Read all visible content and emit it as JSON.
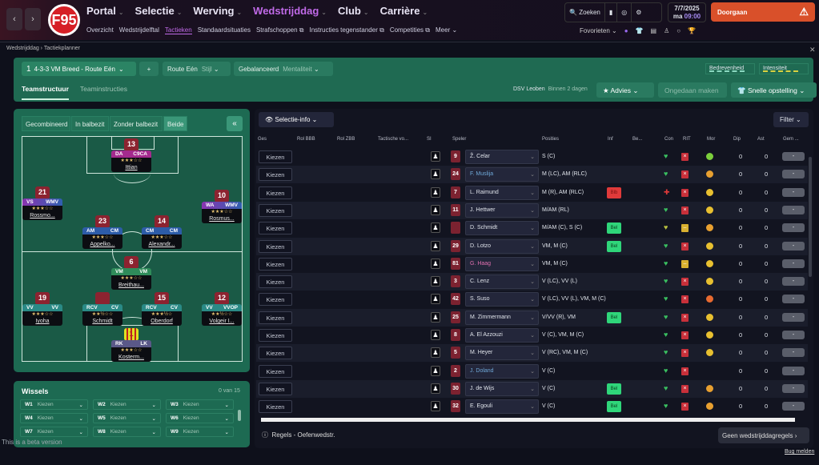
{
  "nav": {
    "back": "‹",
    "forward": "›",
    "club_logo_text": "F95",
    "main": [
      {
        "label": "Portal"
      },
      {
        "label": "Selectie"
      },
      {
        "label": "Werving"
      },
      {
        "label": "Wedstrijddag",
        "active": true
      },
      {
        "label": "Club"
      },
      {
        "label": "Carrière"
      }
    ],
    "sub": [
      {
        "label": "Overzicht"
      },
      {
        "label": "Wedstrijdelftal"
      },
      {
        "label": "Tactieken",
        "active": true
      },
      {
        "label": "Standaardsituaties"
      },
      {
        "label": "Strafschoppen ⧉"
      },
      {
        "label": "Instructies tegenstander ⧉"
      },
      {
        "label": "Competities ⧉"
      },
      {
        "label": "Meer ⌄"
      }
    ],
    "search": "Zoeken",
    "date": "7/7/2025",
    "day": "ma",
    "time": "09:00",
    "continue": "Doorgaan",
    "favorites": "Fovorieten"
  },
  "breadcrumb": {
    "parent": "Wedstrijddag",
    "current": "Tactiekplanner"
  },
  "toolbar": {
    "tactic_no": "1",
    "tactic": "4-3-3 VM Breed - Route Eén",
    "add": "+",
    "style_value": "Route Eén",
    "style_label": "Stijl",
    "mentality_value": "Gebalanceerd",
    "mentality_label": "Mentaliteit",
    "meter1": "Bedrevenheid",
    "meter2": "Intensiteit",
    "tabs": [
      "Teamstructuur",
      "Teaminstructies"
    ],
    "opponent": "DSV Leoben",
    "opponent_when": "Binnen 2 dagen",
    "advice": "Advies",
    "undo": "Ongedaan maken",
    "quick": "Snelle opstelling"
  },
  "pitch": {
    "segments": [
      "Gecombineerd",
      "In balbezit",
      "Zonder balbezit",
      "Beide"
    ],
    "active_segment": "Beide",
    "players": [
      {
        "num": "13",
        "r1": "DA",
        "r2": "C9CA",
        "stars": "★★★☆☆",
        "name": "Ittian",
        "color": "#a42a8e"
      },
      {
        "num": "21",
        "r1": "VS",
        "r2": "WMV",
        "stars": "★★★☆☆",
        "name": "Rossmo...",
        "color": "linear-gradient(90deg,#8a34b0,#2f5fb0)"
      },
      {
        "num": "10",
        "r1": "WA",
        "r2": "WMV",
        "stars": "★★★☆☆",
        "name": "Rosmus...",
        "color": "linear-gradient(90deg,#8a34b0,#2f5fb0)"
      },
      {
        "num": "23",
        "r1": "AM",
        "r2": "CM",
        "stars": "★★★☆☆",
        "name": "Appelko...",
        "color": "#2d5ca8"
      },
      {
        "num": "14",
        "r1": "CM",
        "r2": "CM",
        "stars": "★★★☆☆",
        "name": "Alexandr...",
        "color": "#2d5ca8"
      },
      {
        "num": "6",
        "r1": "VM",
        "r2": "VM",
        "stars": "★★★☆☆",
        "name": "Breithau...",
        "color": "#2f8c5a"
      },
      {
        "num": "19",
        "r1": "VV",
        "r2": "VV",
        "stars": "★★★☆☆",
        "name": "Iyoha",
        "color": "#2a8a86"
      },
      {
        "num": "",
        "r1": "RCV",
        "r2": "CV",
        "stars": "★★½☆☆",
        "name": "Schmidt",
        "color": "#2a8a86"
      },
      {
        "num": "15",
        "r1": "RCV",
        "r2": "CV",
        "stars": "★★★½☆",
        "name": "Oberdorf",
        "color": "#2a8a86"
      },
      {
        "num": "12",
        "r1": "VV",
        "r2": "VVOP",
        "stars": "★★½☆☆",
        "name": "Volgeir I...",
        "color": "#2a8a86"
      },
      {
        "num": "1",
        "r1": "RK",
        "r2": "LK",
        "stars": "★★★☆☆",
        "name": "Kosterm...",
        "color": "#5a5888",
        "gk": true
      }
    ]
  },
  "subs": {
    "title": "Wissels",
    "count": "0 van 15",
    "placeholder": "Kiezen",
    "slots": [
      "W1",
      "W2",
      "W3",
      "W4",
      "W5",
      "W6",
      "W7",
      "W8",
      "W9"
    ]
  },
  "beta": "This is a beta version",
  "table": {
    "selection_info": "Selectie-info",
    "filter": "Filter",
    "headers": [
      "Ges",
      "Rol BBB",
      "Rol ZBB",
      "Tactische vo...",
      "SI",
      "Speler",
      "Posities",
      "Inf",
      "Be...",
      "Con",
      "RIT",
      "Mor",
      "Dip",
      "Ast",
      "Gem ..."
    ],
    "choose": "Kiezen",
    "gem": "-",
    "rows": [
      {
        "num": "9",
        "name": "Ž. Celar",
        "pos": "S (C)",
        "inf": "",
        "con": "ok",
        "rit": "x",
        "mor": "#7ccf3c",
        "dip": "0",
        "ast": "0"
      },
      {
        "num": "24",
        "name": "F. Muslija",
        "nc": "#6fa8d8",
        "pos": "M (LC), AM (RLC)",
        "inf": "",
        "con": "ok",
        "rit": "x",
        "mor": "#e8a030",
        "dip": "0",
        "ast": "0"
      },
      {
        "num": "7",
        "name": "L. Raimund",
        "pos": "M (R), AM (RLC)",
        "inf": "Blb",
        "con": "inj",
        "rit": "x",
        "mor": "#e8c030",
        "dip": "0",
        "ast": "0"
      },
      {
        "num": "11",
        "name": "J. Hettwer",
        "pos": "M/AM (RL)",
        "inf": "",
        "con": "ok",
        "rit": "x",
        "mor": "#e8c030",
        "dip": "0",
        "ast": "0"
      },
      {
        "num": "",
        "name": "D. Schmidt",
        "pos": "M/AM (C), S (C)",
        "inf": "Bel",
        "con": "mid",
        "rit": "-",
        "mor": "#e8a030",
        "dip": "0",
        "ast": "0"
      },
      {
        "num": "29",
        "name": "D. Lotzo",
        "pos": "VM, M (C)",
        "inf": "Bel",
        "con": "ok",
        "rit": "x",
        "mor": "#e8c030",
        "dip": "0",
        "ast": "0"
      },
      {
        "num": "81",
        "name": "G. Haag",
        "nc": "#e070b0",
        "pos": "VM, M (C)",
        "inf": "",
        "con": "ok",
        "rit": "-",
        "mor": "#e8c030",
        "dip": "0",
        "ast": "0"
      },
      {
        "num": "3",
        "name": "C. Lenz",
        "pos": "V (LC), VV (L)",
        "inf": "",
        "con": "ok",
        "rit": "x",
        "mor": "#e8c030",
        "dip": "0",
        "ast": "0"
      },
      {
        "num": "42",
        "name": "S. Suso",
        "pos": "V (LC), VV (L), VM, M (C)",
        "inf": "",
        "con": "ok",
        "rit": "x",
        "mor": "#e86a30",
        "dip": "0",
        "ast": "0"
      },
      {
        "num": "25",
        "name": "M. Zimmermann",
        "pos": "V/VV (R), VM",
        "inf": "Bel",
        "con": "ok",
        "rit": "x",
        "mor": "#e8c030",
        "dip": "0",
        "ast": "0"
      },
      {
        "num": "8",
        "name": "A. El Azzouzi",
        "pos": "V (C), VM, M (C)",
        "inf": "",
        "con": "ok",
        "rit": "x",
        "mor": "#e8c030",
        "dip": "0",
        "ast": "0"
      },
      {
        "num": "5",
        "name": "M. Heyer",
        "pos": "V (RC), VM, M (C)",
        "inf": "",
        "con": "ok",
        "rit": "x",
        "mor": "#e8c030",
        "dip": "0",
        "ast": "0"
      },
      {
        "num": "2",
        "name": "J. Doland",
        "nc": "#6fa8d8",
        "pos": "V (C)",
        "inf": "",
        "con": "ok",
        "rit": "x",
        "mor": "",
        "dip": "0",
        "ast": "0"
      },
      {
        "num": "30",
        "name": "J. de Wijs",
        "pos": "V (C)",
        "inf": "Bel",
        "con": "ok",
        "rit": "x",
        "mor": "#e8a030",
        "dip": "0",
        "ast": "0"
      },
      {
        "num": "32",
        "name": "E. Egouli",
        "pos": "V (C)",
        "inf": "Bel",
        "con": "ok",
        "rit": "x",
        "mor": "#e8a030",
        "dip": "0",
        "ast": "0"
      }
    ]
  },
  "footer": {
    "rules": "Regels - Oefenwedstr.",
    "no_rules": "Geen wedstrijddagregels",
    "bug": "Bug melden"
  },
  "colors": {
    "accent": "#c06ae8",
    "continue": "#d9502a",
    "panel_green": "#1d6a52",
    "injury": "#e03a3a",
    "bel": "#2fd67a"
  }
}
